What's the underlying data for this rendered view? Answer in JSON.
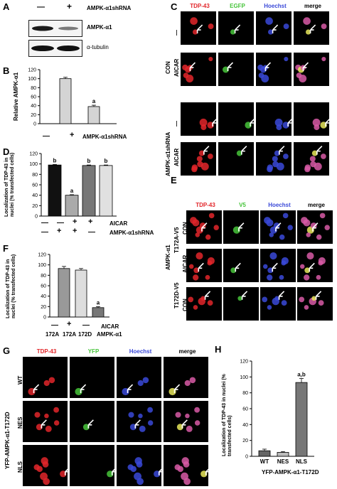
{
  "panels": {
    "A": {
      "letter": "A",
      "signs": [
        "—",
        "+"
      ],
      "treatment": "AMPK-α1shRNA",
      "blots": [
        "AMPK-α1",
        "α-tubulin"
      ]
    },
    "B": {
      "letter": "B",
      "ylabel": "Relative AMPK-α1",
      "xlabel": "AMPK-α1shRNA",
      "signs": [
        "—",
        "+"
      ],
      "annotation": "a"
    },
    "C": {
      "letter": "C",
      "cols": [
        "TDP-43",
        "EGFP",
        "Hoechst",
        "merge"
      ],
      "groups": [
        "CON",
        "AMPK-α1shRNA"
      ],
      "rows": [
        "—",
        "AICAR",
        "—",
        "AICAR"
      ]
    },
    "D": {
      "letter": "D",
      "ylabel": "Localization of TDP-43 in nuclei (% transfected cells)",
      "row1_label": "AICAR",
      "row2_label": "AMPK-α1shRNA",
      "row1_signs": [
        "—",
        "—",
        "+",
        "+"
      ],
      "row2_signs": [
        "—",
        "+",
        "+",
        "—"
      ],
      "annotations": [
        "b",
        "a",
        "b",
        "b"
      ]
    },
    "E": {
      "letter": "E",
      "cols": [
        "TDP-43",
        "V5",
        "Hoechst",
        "merge"
      ],
      "groups": [
        "T172A-V5",
        "T172D-V5"
      ],
      "rows": [
        "CON",
        "AICAR",
        "CON"
      ],
      "side_label": "AMPK-α1"
    },
    "F": {
      "letter": "F",
      "ylabel": "Localization of TDP-43 in nuclei (% transfected cells)",
      "row1_label": "AICAR",
      "row2_label": "AMPK-α1",
      "row1_signs": [
        "—",
        "+",
        "—"
      ],
      "row2_values": [
        "172A",
        "172A",
        "172D"
      ],
      "annotations": [
        "",
        "",
        "a"
      ]
    },
    "G": {
      "letter": "G",
      "cols": [
        "TDP-43",
        "YFP",
        "Hoechst",
        "merge"
      ],
      "rows": [
        "WT",
        "NES",
        "NLS"
      ],
      "side_label": "YFP-AMPK-α1-T172D"
    },
    "H": {
      "letter": "H",
      "ylabel": "Localization of TDP-43 in nuclei (% transfected cells)",
      "xlabel": "YFP-AMPK-α1-T172D",
      "categories": [
        "WT",
        "NES",
        "NLS"
      ],
      "annotation": "a,b"
    }
  },
  "colors": {
    "red": "#e2262a",
    "green": "#46c43a",
    "blue": "#3a49d8",
    "merge": "#d85aa6"
  },
  "chart_data": [
    {
      "type": "bar",
      "panel": "B",
      "categories": [
        "—",
        "+"
      ],
      "values": [
        100,
        38
      ],
      "errors": [
        3,
        3
      ],
      "ylabel": "Relative AMPK-α1",
      "xlabel": "AMPK-α1shRNA",
      "ylim": [
        0,
        120
      ],
      "yticks": [
        0,
        20,
        40,
        60,
        80,
        100,
        120
      ],
      "bar_colors": [
        "#d4d4d4",
        "#d4d4d4"
      ]
    },
    {
      "type": "bar",
      "panel": "D",
      "values": [
        98,
        40,
        97,
        97
      ],
      "errors": [
        1,
        1,
        1,
        1
      ],
      "ylim": [
        0,
        120
      ],
      "yticks": [
        0,
        20,
        40,
        60,
        80,
        100,
        120
      ],
      "bar_colors": [
        "#111111",
        "#aaaaaa",
        "#777777",
        "#e0e0e0"
      ],
      "ylabel": "Localization of TDP-43 in nuclei (% transfected cells)"
    },
    {
      "type": "bar",
      "panel": "F",
      "values": [
        93,
        90,
        18
      ],
      "errors": [
        4,
        3,
        2
      ],
      "ylim": [
        0,
        120
      ],
      "yticks": [
        0,
        20,
        40,
        60,
        80,
        100,
        120
      ],
      "bar_colors": [
        "#999999",
        "#dddddd",
        "#777777"
      ],
      "ylabel": "Localization of TDP-43 in nuclei (% transfected cells)"
    },
    {
      "type": "bar",
      "panel": "H",
      "categories": [
        "WT",
        "NES",
        "NLS"
      ],
      "values": [
        7,
        5,
        93
      ],
      "errors": [
        2,
        1,
        5
      ],
      "ylim": [
        0,
        120
      ],
      "yticks": [
        0,
        20,
        40,
        60,
        80,
        100,
        120
      ],
      "bar_colors": [
        "#666666",
        "#bbbbbb",
        "#777777"
      ],
      "ylabel": "Localization of TDP-43 in nuclei (% transfected cells)",
      "xlabel": "YFP-AMPK-α1-T172D"
    }
  ]
}
